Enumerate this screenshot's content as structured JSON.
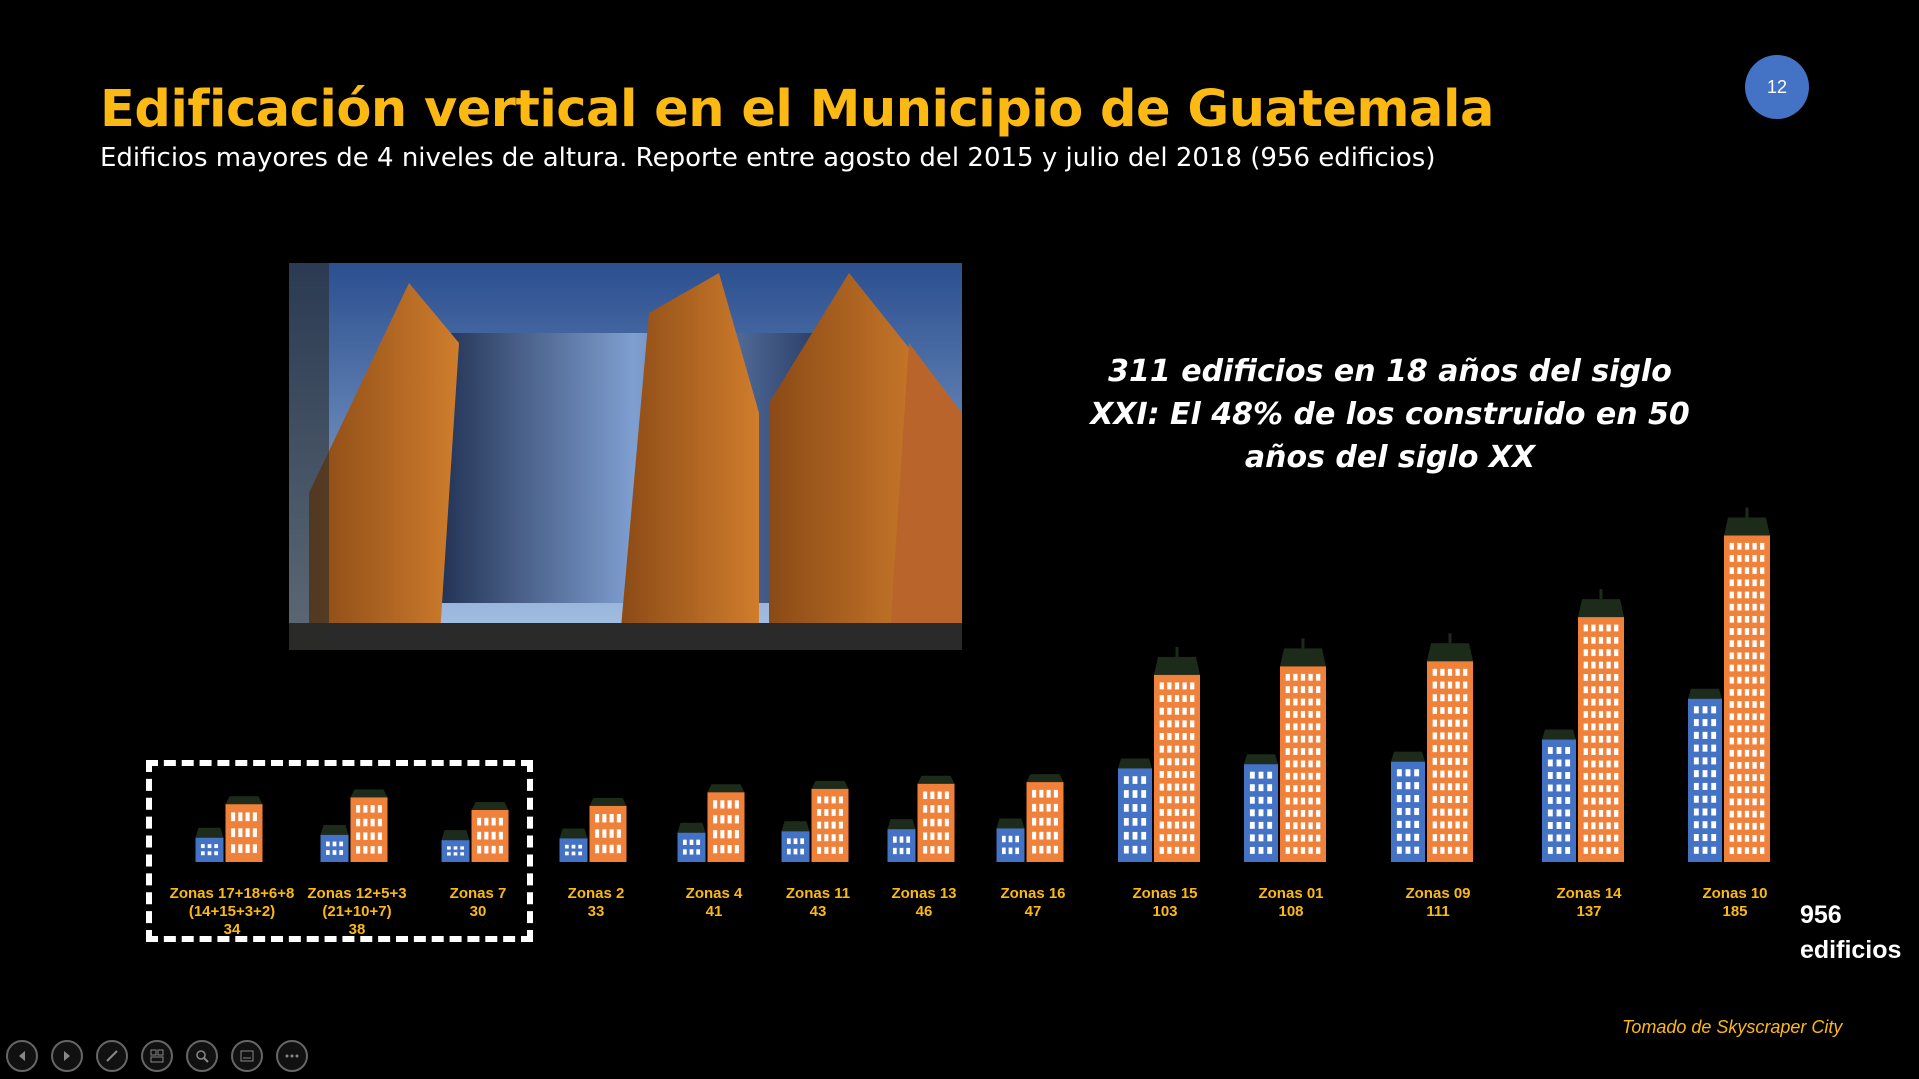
{
  "title": "Edificación vertical en el Municipio de Guatemala",
  "subtitle": "Edificios mayores de 4 niveles de altura. Reporte entre agosto del 2015 y julio del 2018 (956 edificios)",
  "page_number": "12",
  "callout": "311 edificios en 18 años del siglo XXI: El 48% de los construido en 50 años del siglo XX",
  "total": {
    "number": "956",
    "unit": "edificios"
  },
  "source": "Tomado de Skyscraper City",
  "chart_data": {
    "type": "bar",
    "categories": [
      {
        "lines": [
          "Zonas 17+18+6+8",
          "(14+15+3+2)"
        ]
      },
      {
        "lines": [
          "Zonas 12+5+3",
          "(21+10+7)"
        ]
      },
      {
        "lines": [
          "Zonas 7"
        ]
      },
      {
        "lines": [
          "Zonas 2"
        ]
      },
      {
        "lines": [
          "Zonas 4"
        ]
      },
      {
        "lines": [
          "Zonas 11"
        ]
      },
      {
        "lines": [
          "Zonas 13"
        ]
      },
      {
        "lines": [
          "Zonas 16"
        ]
      },
      {
        "lines": [
          "Zonas 15"
        ]
      },
      {
        "lines": [
          "Zonas 01"
        ]
      },
      {
        "lines": [
          "Zonas 09"
        ]
      },
      {
        "lines": [
          "Zonas 14"
        ]
      },
      {
        "lines": [
          "Zonas 10"
        ]
      }
    ],
    "values": [
      34,
      38,
      30,
      33,
      41,
      43,
      46,
      47,
      103,
      108,
      111,
      137,
      185
    ],
    "value_labels": [
      "34",
      "38",
      "30",
      "33",
      "41",
      "43",
      "46",
      "47",
      "103",
      "108",
      "111",
      "137",
      "185"
    ],
    "colors": {
      "orange": "#F0813A",
      "blue": "#4472C4",
      "roof": "#1D2B1A",
      "label": "#FDB913"
    }
  },
  "toolbar": {
    "icons": [
      "previous-icon",
      "next-icon",
      "pen-icon",
      "slides-icon",
      "zoom-icon",
      "subtitles-icon",
      "more-icon"
    ]
  }
}
